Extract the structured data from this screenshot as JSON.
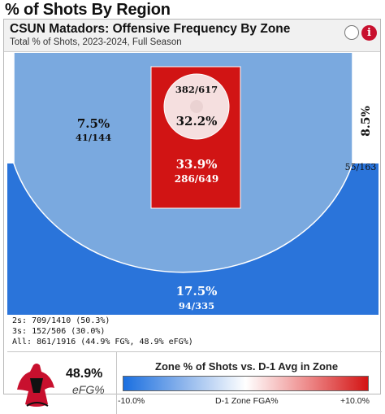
{
  "page_title": "% of Shots By Region",
  "card": {
    "title": "CSUN Matadors: Offensive Frequency By Zone",
    "subtitle": "Total % of Shots, 2023-2024, Full Season",
    "info_icon": "i"
  },
  "zones": {
    "restricted_area": {
      "pct": "32.2%",
      "count": "382/617"
    },
    "paint": {
      "pct": "33.9%",
      "count": "286/649"
    },
    "midrange": {
      "pct": "7.5%",
      "count": "41/144"
    },
    "corner_right": {
      "pct": "8.5%",
      "count": "55/163"
    },
    "above_break_three": {
      "pct": "17.5%",
      "count": "94/335"
    }
  },
  "stats": {
    "twos": "2s: 709/1410 (50.3%)",
    "threes": "3s: 152/506 (30.0%)",
    "all": "All: 861/1916 (44.9% FG%, 48.9% eFG%)"
  },
  "efg": {
    "value": "48.9%",
    "label": "eFG%"
  },
  "legend": {
    "title": "Zone % of Shots vs. D-1 Avg in Zone",
    "min": "-10.0%",
    "mid": "D-1 Zone FGA%",
    "max": "+10.0%"
  },
  "colors": {
    "paint": "#d11414",
    "midrange": "#7aa9df",
    "three": "#2a74da",
    "restricted": "#f5dfdf",
    "accent": "#c8102e"
  },
  "icons": {
    "toggle": "circle-toggle-icon",
    "info": "info-icon",
    "logo": "matador-logo-icon"
  }
}
